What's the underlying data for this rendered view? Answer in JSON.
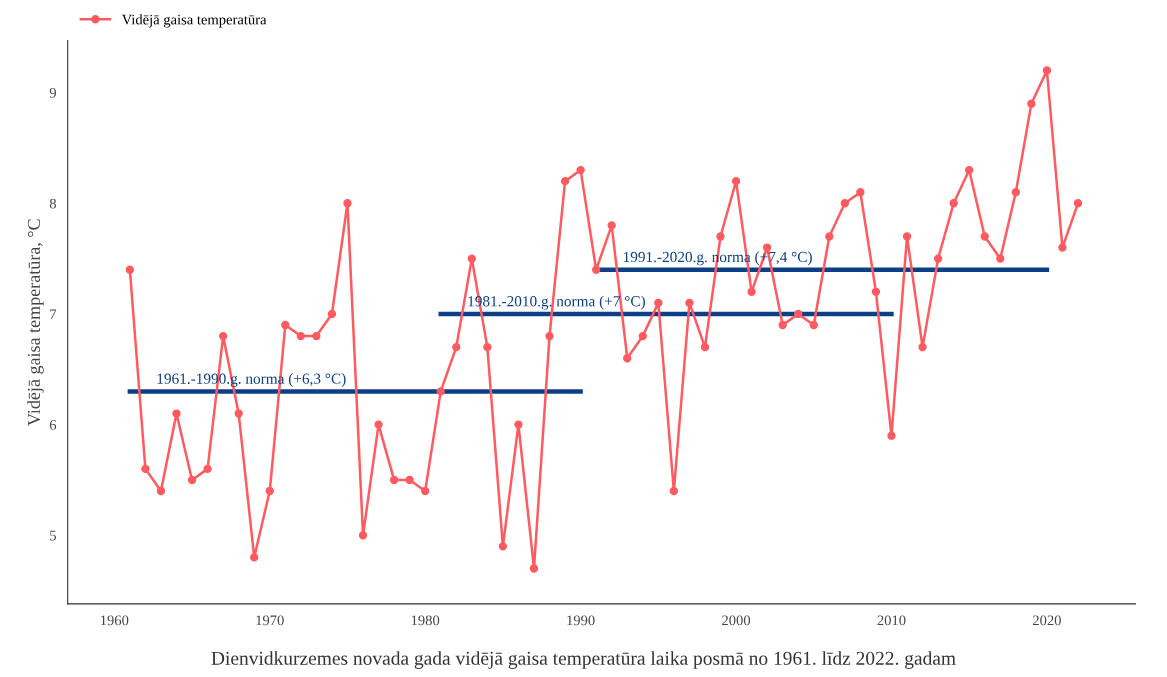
{
  "chart_data": {
    "type": "line",
    "ylabel": "Vidējā gaisa temperatūra, °C",
    "annotations": [
      "Dienvidkurzemes novada gada vidējā gaisa temperatūra laika posmā no 1961. līdz 2022. gadam"
    ],
    "x": [
      1961,
      1962,
      1963,
      1964,
      1965,
      1966,
      1967,
      1968,
      1969,
      1970,
      1971,
      1972,
      1973,
      1974,
      1975,
      1976,
      1977,
      1978,
      1979,
      1980,
      1981,
      1982,
      1983,
      1984,
      1985,
      1986,
      1987,
      1988,
      1989,
      1990,
      1991,
      1992,
      1993,
      1994,
      1995,
      1996,
      1997,
      1998,
      1999,
      2000,
      2001,
      2002,
      2003,
      2004,
      2005,
      2006,
      2007,
      2008,
      2009,
      2010,
      2011,
      2012,
      2013,
      2014,
      2015,
      2016,
      2017,
      2018,
      2019,
      2020,
      2021,
      2022
    ],
    "series": [
      {
        "name": "Vidējā gaisa temperatūra",
        "color": "#ff5a5f",
        "marker": "circle",
        "values": [
          7.4,
          5.6,
          5.4,
          6.1,
          5.5,
          5.6,
          6.8,
          6.1,
          4.8,
          5.4,
          6.9,
          6.8,
          6.8,
          7.0,
          8.0,
          5.0,
          6.0,
          5.5,
          5.5,
          5.4,
          6.3,
          6.7,
          7.5,
          6.7,
          4.9,
          6.0,
          4.7,
          6.8,
          8.2,
          8.3,
          7.4,
          7.8,
          6.6,
          6.8,
          7.1,
          5.4,
          7.1,
          6.7,
          7.7,
          8.2,
          7.2,
          7.6,
          6.9,
          7.0,
          6.9,
          7.7,
          8.0,
          8.1,
          7.2,
          5.9,
          7.7,
          6.7,
          7.5,
          8.0,
          8.3,
          7.7,
          7.5,
          8.1,
          8.9,
          9.2,
          7.6,
          8.0
        ]
      },
      {
        "type": "line",
        "name": "1961.-1990.g. norma (+6,3 °C)",
        "color": "#0d3f87",
        "marker": "none",
        "x": [
          1961,
          1990
        ],
        "values": [
          6.3,
          6.3
        ]
      },
      {
        "type": "line",
        "name": "1981.-2010.g. norma (+7 °C)",
        "color": "#0d3f87",
        "marker": "none",
        "x": [
          1981,
          2010
        ],
        "values": [
          7.0,
          7.0
        ]
      },
      {
        "type": "line",
        "name": "1991.-2020.g. norma (+7,4 °C)",
        "color": "#0d3f87",
        "marker": "none",
        "x": [
          1991,
          2020
        ],
        "values": [
          7.4,
          7.4
        ]
      }
    ],
    "xlim": [
      1957,
      2025.7
    ],
    "xticks": [
      1960,
      1970,
      1980,
      1990,
      2000,
      2010,
      2020
    ],
    "ylim": [
      4.38,
      9.47
    ],
    "yticks": [
      5,
      6,
      7,
      8,
      9
    ],
    "grid": false,
    "legend": "top left"
  }
}
